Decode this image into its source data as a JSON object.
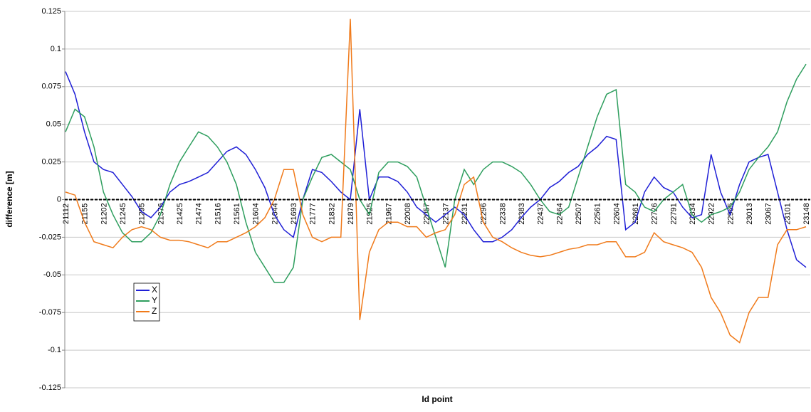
{
  "chart_data": {
    "type": "line",
    "x_label": "Id point",
    "y_label": "difference [m]",
    "categories": [
      "21112",
      null,
      "21155",
      null,
      "21202",
      null,
      "21245",
      null,
      "21295",
      null,
      "21376",
      null,
      "21425",
      null,
      "21474",
      null,
      "21516",
      null,
      "21561",
      null,
      "21604",
      null,
      "21644",
      null,
      "21693",
      null,
      "21777",
      null,
      "21832",
      null,
      "21879",
      null,
      "21925",
      null,
      "21967",
      null,
      "22008",
      null,
      "22057",
      null,
      "22137",
      null,
      "22231",
      null,
      "22296",
      null,
      "22338",
      null,
      "22383",
      null,
      "22437",
      null,
      "22464",
      null,
      "22507",
      null,
      "22561",
      null,
      "22604",
      null,
      "22661",
      null,
      "22726",
      null,
      "22791",
      null,
      "22834",
      null,
      "22922",
      null,
      "22965",
      null,
      "23013",
      null,
      "23067",
      null,
      "23101",
      null,
      "23148"
    ],
    "series": [
      {
        "name": "X",
        "color": "#1f1fd6",
        "values": [
          0.085,
          0.07,
          0.045,
          0.025,
          0.02,
          0.018,
          0.01,
          0.002,
          -0.008,
          -0.012,
          -0.005,
          0.005,
          0.01,
          0.012,
          0.015,
          0.018,
          0.025,
          0.032,
          0.035,
          0.03,
          0.02,
          0.008,
          -0.01,
          -0.02,
          -0.025,
          0.0,
          0.02,
          0.018,
          0.012,
          0.005,
          0.0,
          0.06,
          0.0,
          0.015,
          0.015,
          0.012,
          0.005,
          -0.005,
          -0.01,
          -0.015,
          -0.01,
          -0.005,
          -0.01,
          -0.02,
          -0.028,
          -0.028,
          -0.025,
          -0.02,
          -0.012,
          -0.005,
          0.0,
          0.008,
          0.012,
          0.018,
          0.022,
          0.03,
          0.035,
          0.042,
          0.04,
          -0.02,
          -0.015,
          0.005,
          0.015,
          0.008,
          0.005,
          -0.005,
          -0.012,
          -0.01,
          0.03,
          0.005,
          -0.01,
          0.01,
          0.025,
          0.028,
          0.03,
          0.005,
          -0.02,
          -0.04,
          -0.045
        ]
      },
      {
        "name": "Y",
        "color": "#2e9e5e",
        "values": [
          0.045,
          0.06,
          0.055,
          0.035,
          0.005,
          -0.01,
          -0.022,
          -0.028,
          -0.028,
          -0.022,
          -0.01,
          0.01,
          0.025,
          0.035,
          0.045,
          0.042,
          0.035,
          0.025,
          0.01,
          -0.015,
          -0.035,
          -0.045,
          -0.055,
          -0.055,
          -0.045,
          0.0,
          0.015,
          0.028,
          0.03,
          0.025,
          0.02,
          0.0,
          -0.01,
          0.018,
          0.025,
          0.025,
          0.022,
          0.015,
          -0.005,
          -0.025,
          -0.045,
          0.0,
          0.02,
          0.01,
          0.02,
          0.025,
          0.025,
          0.022,
          0.018,
          0.01,
          0.0,
          -0.008,
          -0.01,
          -0.005,
          0.015,
          0.035,
          0.055,
          0.07,
          0.073,
          0.01,
          0.005,
          -0.005,
          -0.008,
          0.0,
          0.005,
          0.01,
          -0.01,
          -0.015,
          -0.01,
          -0.008,
          -0.005,
          0.005,
          0.02,
          0.028,
          0.035,
          0.045,
          0.065,
          0.08,
          0.09
        ]
      },
      {
        "name": "Z",
        "color": "#f07a1a",
        "values": [
          0.005,
          0.003,
          -0.015,
          -0.028,
          -0.03,
          -0.032,
          -0.025,
          -0.02,
          -0.018,
          -0.02,
          -0.025,
          -0.027,
          -0.027,
          -0.028,
          -0.03,
          -0.032,
          -0.028,
          -0.028,
          -0.025,
          -0.022,
          -0.018,
          -0.012,
          0.0,
          0.02,
          0.02,
          -0.01,
          -0.025,
          -0.028,
          -0.025,
          -0.025,
          0.12,
          -0.08,
          -0.035,
          -0.02,
          -0.015,
          -0.015,
          -0.018,
          -0.018,
          -0.025,
          -0.022,
          -0.02,
          -0.01,
          0.01,
          0.015,
          -0.015,
          -0.025,
          -0.028,
          -0.032,
          -0.035,
          -0.037,
          -0.038,
          -0.037,
          -0.035,
          -0.033,
          -0.032,
          -0.03,
          -0.03,
          -0.028,
          -0.028,
          -0.038,
          -0.038,
          -0.035,
          -0.022,
          -0.028,
          -0.03,
          -0.032,
          -0.035,
          -0.045,
          -0.065,
          -0.075,
          -0.09,
          -0.095,
          -0.075,
          -0.065,
          -0.065,
          -0.03,
          -0.02,
          -0.02,
          -0.018
        ]
      }
    ],
    "ylim": [
      -0.125,
      0.125
    ],
    "yticks": [
      -0.125,
      -0.1,
      -0.075,
      -0.05,
      -0.025,
      0,
      0.025,
      0.05,
      0.075,
      0.1,
      0.125
    ],
    "grid": true,
    "legend": "lower-left"
  }
}
